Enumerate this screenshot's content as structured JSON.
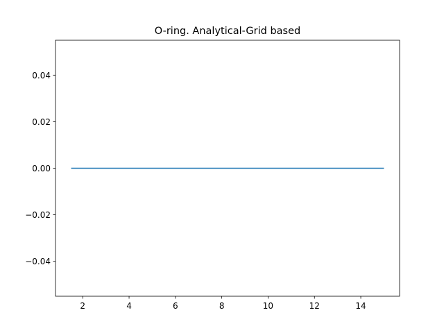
{
  "chart_data": {
    "type": "line",
    "title": "O-ring. Analytical-Grid based",
    "xlabel": "",
    "ylabel": "",
    "xlim": [
      0.825,
      15.675
    ],
    "ylim": [
      -0.055,
      0.055
    ],
    "xticks": [
      2,
      4,
      6,
      8,
      10,
      12,
      14
    ],
    "xtick_labels": [
      "2",
      "4",
      "6",
      "8",
      "10",
      "12",
      "14"
    ],
    "yticks": [
      0.04,
      0.02,
      0.0,
      -0.02,
      -0.04
    ],
    "ytick_labels": [
      "0.04",
      "0.02",
      "0.00",
      "−0.02",
      "−0.04"
    ],
    "grid": false,
    "legend": "none",
    "series": [
      {
        "color": "#1f77b4",
        "x": [
          1.5,
          15.0
        ],
        "y": [
          0.0,
          0.0
        ]
      }
    ]
  }
}
